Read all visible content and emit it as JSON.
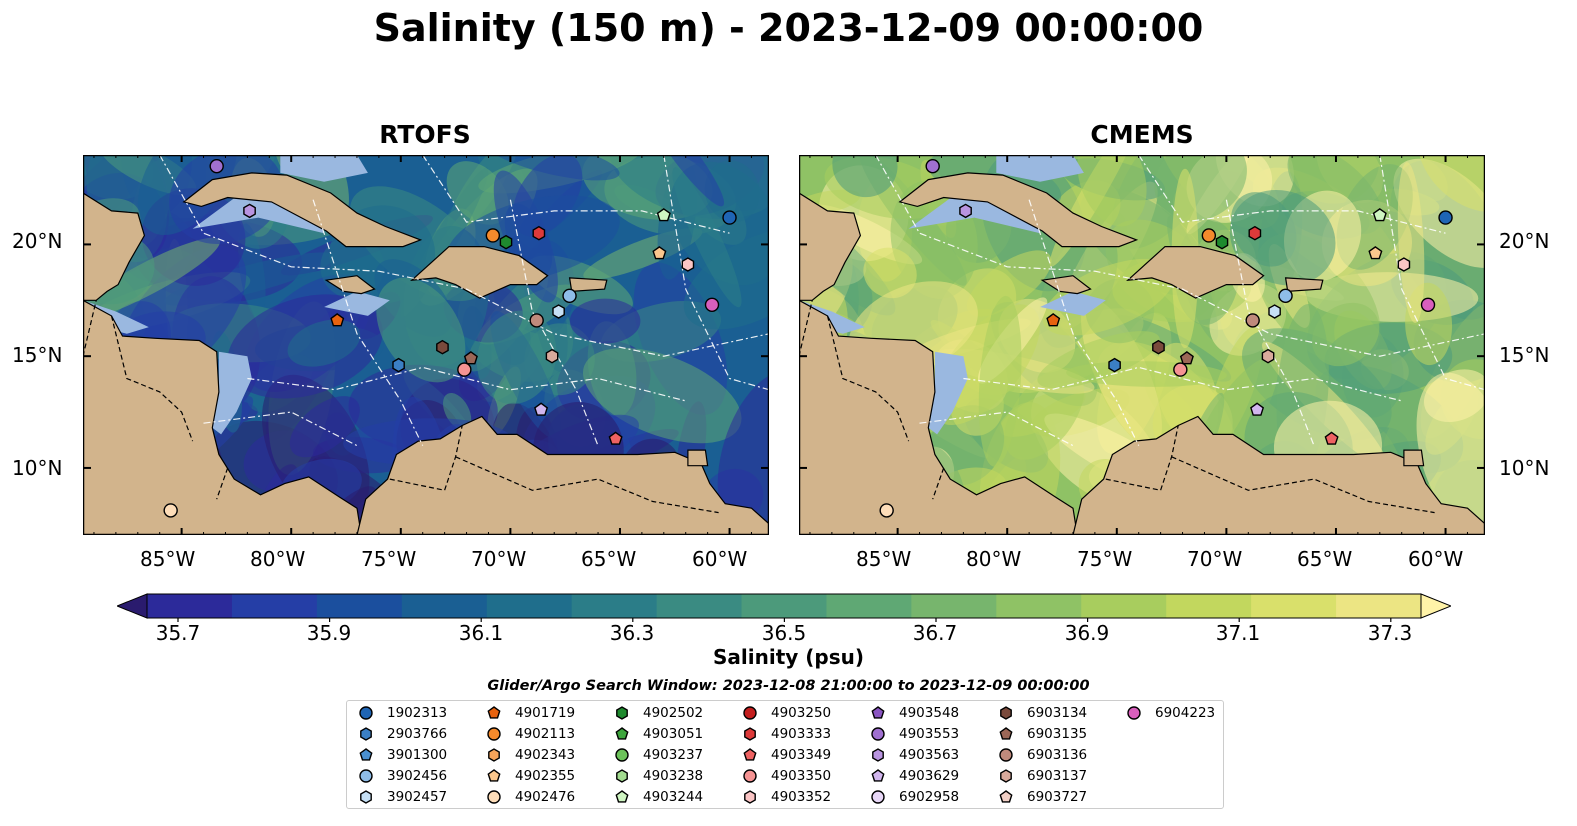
{
  "title": "Salinity (150 m) - 2023-12-09 00:00:00",
  "panels": [
    {
      "title": "RTOFS",
      "theme": "low"
    },
    {
      "title": "CMEMS",
      "theme": "high"
    }
  ],
  "map": {
    "lon_range": [
      -89.5,
      -58.2
    ],
    "lat_range": [
      7.0,
      24.0
    ],
    "lon_ticks": [
      "85°W",
      "80°W",
      "75°W",
      "70°W",
      "65°W",
      "60°W"
    ],
    "lat_ticks": [
      "20°N",
      "15°N",
      "10°N"
    ]
  },
  "colorbar": {
    "label": "Salinity (psu)",
    "ticks": [
      "35.7",
      "35.9",
      "36.1",
      "36.3",
      "36.5",
      "36.7",
      "36.9",
      "37.1",
      "37.3"
    ],
    "colors": [
      "#2a1b6e",
      "#2c2a9a",
      "#253ea6",
      "#1b4f9e",
      "#1a5f93",
      "#1f6e8c",
      "#2b7d88",
      "#3a8b82",
      "#4c9a7b",
      "#5fa874",
      "#77b56d",
      "#8fc265",
      "#a8cd5e",
      "#c2d75e",
      "#d9e06b",
      "#ece583",
      "#fff3a8"
    ]
  },
  "legend": {
    "title": "Glider/Argo Search Window: 2023-12-08 21:00:00 to 2023-12-09 00:00:00",
    "floats": [
      {
        "id": "1902313",
        "marker": "circle",
        "color": "#1f65b5"
      },
      {
        "id": "2903766",
        "marker": "hexagon",
        "color": "#3b7fc4"
      },
      {
        "id": "3901300",
        "marker": "pentagon",
        "color": "#4a90d0"
      },
      {
        "id": "3902456",
        "marker": "circle",
        "color": "#8fbde8"
      },
      {
        "id": "3902457",
        "marker": "hexagon",
        "color": "#c6e0f5"
      },
      {
        "id": "4901719",
        "marker": "pentagon",
        "color": "#e8630f"
      },
      {
        "id": "4902113",
        "marker": "circle",
        "color": "#f58a2c"
      },
      {
        "id": "4902343",
        "marker": "hexagon",
        "color": "#f7a45a"
      },
      {
        "id": "4902355",
        "marker": "pentagon",
        "color": "#fbc78d"
      },
      {
        "id": "4902476",
        "marker": "circle",
        "color": "#fdddb9"
      },
      {
        "id": "4902502",
        "marker": "hexagon",
        "color": "#1f8a2e"
      },
      {
        "id": "4903051",
        "marker": "pentagon",
        "color": "#3ea63d"
      },
      {
        "id": "4903237",
        "marker": "circle",
        "color": "#6cc25a"
      },
      {
        "id": "4903238",
        "marker": "hexagon",
        "color": "#a3dc90"
      },
      {
        "id": "4903244",
        "marker": "pentagon",
        "color": "#cff5c2"
      },
      {
        "id": "4903250",
        "marker": "circle",
        "color": "#c41e1e"
      },
      {
        "id": "4903333",
        "marker": "hexagon",
        "color": "#dd3a3a"
      },
      {
        "id": "4903349",
        "marker": "pentagon",
        "color": "#ee6262"
      },
      {
        "id": "4903350",
        "marker": "circle",
        "color": "#f59393"
      },
      {
        "id": "4903352",
        "marker": "hexagon",
        "color": "#fbc5c5"
      },
      {
        "id": "4903548",
        "marker": "pentagon",
        "color": "#8a55c2"
      },
      {
        "id": "4903553",
        "marker": "circle",
        "color": "#a070d0"
      },
      {
        "id": "4903563",
        "marker": "hexagon",
        "color": "#b994e0"
      },
      {
        "id": "4903629",
        "marker": "pentagon",
        "color": "#d2b6ee"
      },
      {
        "id": "6902958",
        "marker": "circle",
        "color": "#e8d7f7"
      },
      {
        "id": "6903134",
        "marker": "hexagon",
        "color": "#7a4a3c"
      },
      {
        "id": "6903135",
        "marker": "pentagon",
        "color": "#9c6757"
      },
      {
        "id": "6903136",
        "marker": "circle",
        "color": "#bf8a7c"
      },
      {
        "id": "6903137",
        "marker": "hexagon",
        "color": "#d9aa9c"
      },
      {
        "id": "6903727",
        "marker": "pentagon",
        "color": "#f2d0c6"
      },
      {
        "id": "6904223",
        "marker": "circle",
        "color": "#d95fbd"
      }
    ]
  },
  "map_points": [
    {
      "id": "1902313",
      "lon": -60.0,
      "lat": 21.2
    },
    {
      "id": "2903766",
      "lon": -75.1,
      "lat": 14.6
    },
    {
      "id": "3902456",
      "lon": -67.3,
      "lat": 17.7
    },
    {
      "id": "3902457",
      "lon": -67.8,
      "lat": 17.0
    },
    {
      "id": "4901719",
      "lon": -77.9,
      "lat": 16.6
    },
    {
      "id": "4902113",
      "lon": -70.8,
      "lat": 20.4
    },
    {
      "id": "4902355",
      "lon": -63.2,
      "lat": 19.6
    },
    {
      "id": "4902476",
      "lon": -85.5,
      "lat": 8.1
    },
    {
      "id": "4902502",
      "lon": -70.2,
      "lat": 20.1
    },
    {
      "id": "4903244",
      "lon": -63.0,
      "lat": 21.3
    },
    {
      "id": "4903333",
      "lon": -68.7,
      "lat": 20.5
    },
    {
      "id": "4903349",
      "lon": -65.2,
      "lat": 11.3
    },
    {
      "id": "4903350",
      "lon": -72.1,
      "lat": 14.4
    },
    {
      "id": "4903352",
      "lon": -61.9,
      "lat": 19.1
    },
    {
      "id": "4903553",
      "lon": -83.4,
      "lat": 23.5
    },
    {
      "id": "4903563",
      "lon": -81.9,
      "lat": 21.5
    },
    {
      "id": "4903629",
      "lon": -68.6,
      "lat": 12.6
    },
    {
      "id": "6903134",
      "lon": -73.1,
      "lat": 15.4
    },
    {
      "id": "6903135",
      "lon": -71.8,
      "lat": 14.9
    },
    {
      "id": "6903136",
      "lon": -68.8,
      "lat": 16.6
    },
    {
      "id": "6903137",
      "lon": -68.1,
      "lat": 15.0
    },
    {
      "id": "6904223",
      "lon": -60.8,
      "lat": 17.3
    }
  ]
}
